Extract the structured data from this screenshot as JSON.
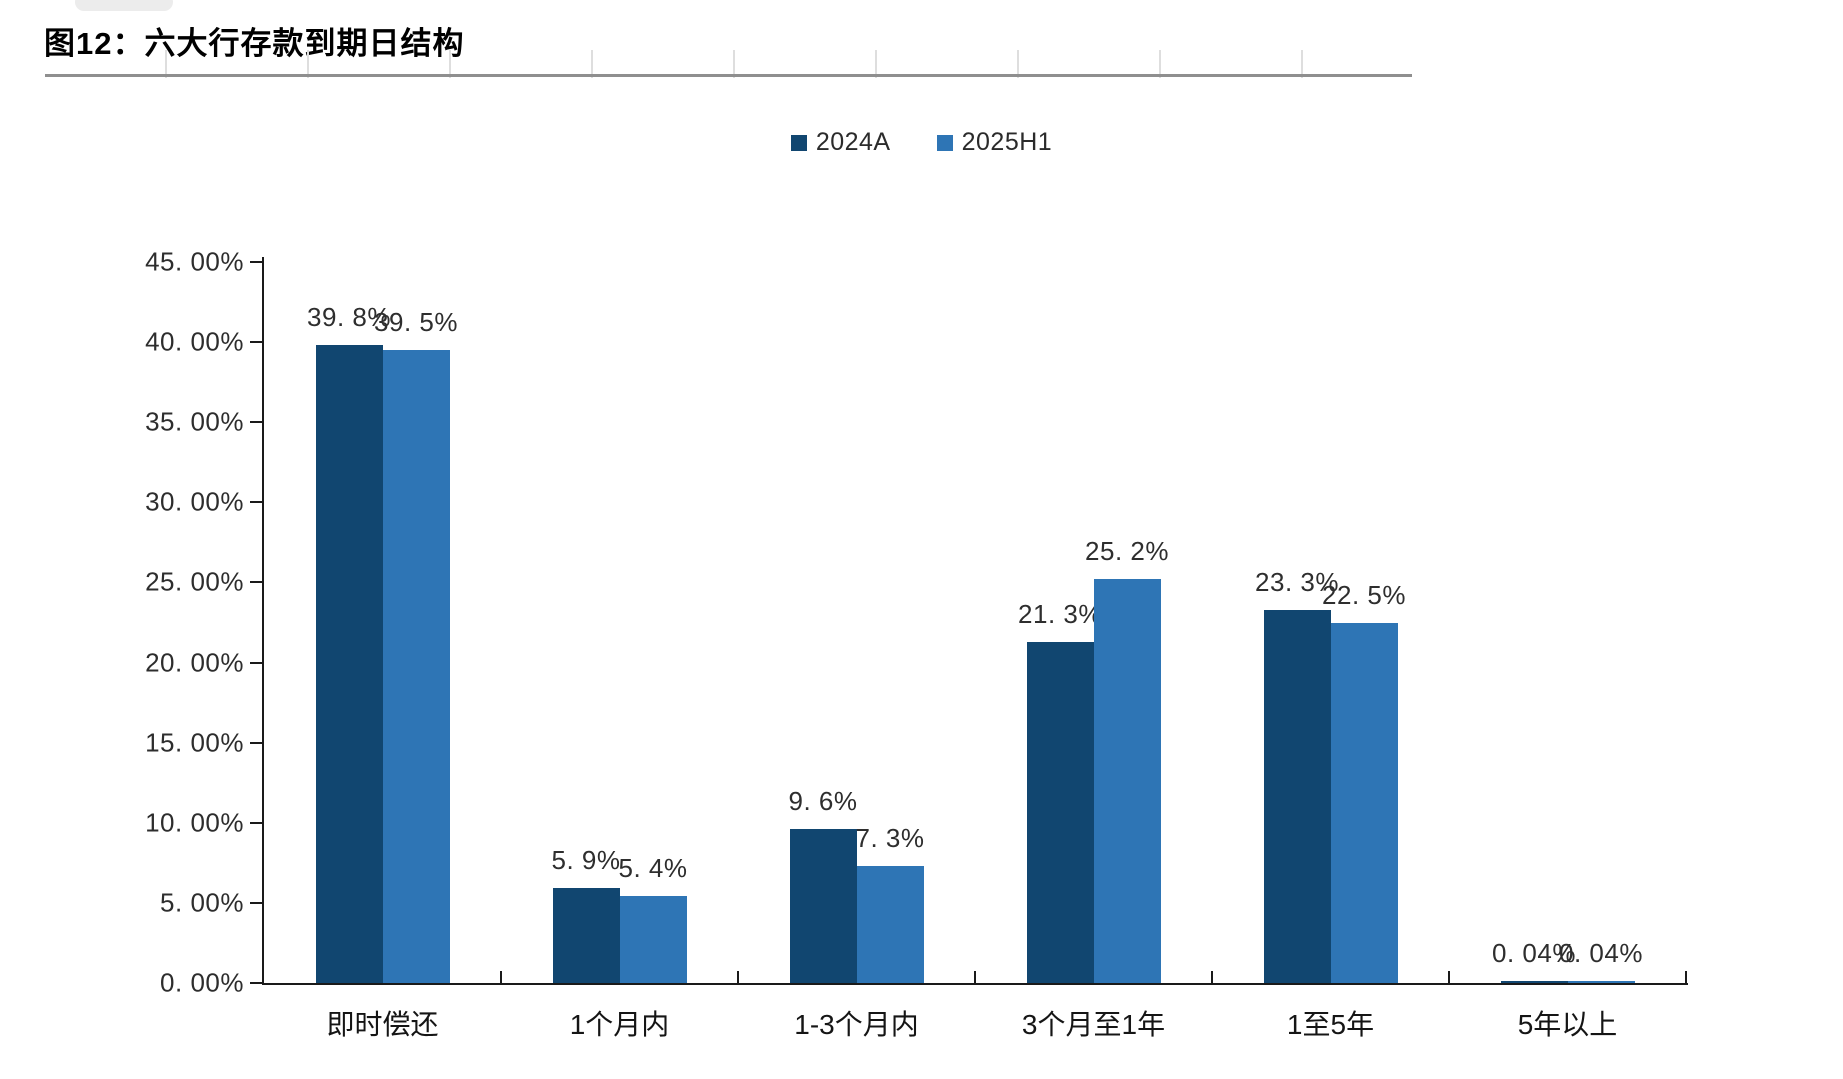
{
  "page": {
    "title": "图12：六大行存款到期日结构"
  },
  "chart_data": {
    "type": "bar",
    "title": "图12：六大行存款到期日结构",
    "categories": [
      "即时偿还",
      "1个月内",
      "1-3个月内",
      "3个月至1年",
      "1至5年",
      "5年以上"
    ],
    "series": [
      {
        "name": "2024A",
        "color": "#114670",
        "values": [
          39.8,
          5.9,
          9.6,
          21.3,
          23.3,
          0.04
        ],
        "labels": [
          "39. 8%",
          "5. 9%",
          "9. 6%",
          "21. 3%",
          "23. 3%",
          "0. 04%"
        ]
      },
      {
        "name": "2025H1",
        "color": "#2E75B5",
        "values": [
          39.5,
          5.4,
          7.3,
          25.2,
          22.5,
          0.04
        ],
        "labels": [
          "39. 5%",
          "5. 4%",
          "7. 3%",
          "25. 2%",
          "22. 5%",
          "0. 04%"
        ]
      }
    ],
    "y_axis": {
      "min": 0,
      "max": 45,
      "step": 5,
      "tick_labels": [
        "0. 00%",
        "5. 00%",
        "10. 00%",
        "15. 00%",
        "20. 00%",
        "25. 00%",
        "30. 00%",
        "35. 00%",
        "40. 00%",
        "45. 00%"
      ]
    },
    "xlabel": "",
    "ylabel": "",
    "grid": false,
    "legend": {
      "position": "top-center",
      "entries": [
        "2024A",
        "2025H1"
      ]
    }
  }
}
